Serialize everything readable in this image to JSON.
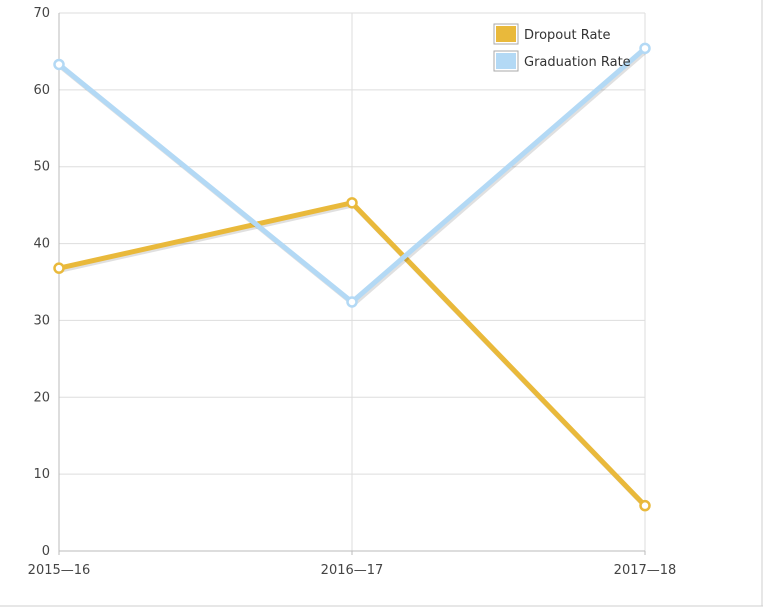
{
  "chart_data": {
    "type": "line",
    "title": "",
    "xlabel": "",
    "ylabel": "",
    "categories": [
      "2015—16",
      "2016—17",
      "2017—18"
    ],
    "ylim": [
      0,
      70
    ],
    "yticks": [
      0,
      10,
      20,
      30,
      40,
      50,
      60,
      70
    ],
    "grid": true,
    "legend_position": "top-right",
    "series": [
      {
        "name": "Dropout Rate",
        "color": "#e9b93b",
        "values": [
          36.8,
          45.3,
          5.9
        ]
      },
      {
        "name": "Graduation Rate",
        "color": "#b3d9f5",
        "values": [
          63.3,
          32.4,
          65.4
        ]
      }
    ]
  }
}
